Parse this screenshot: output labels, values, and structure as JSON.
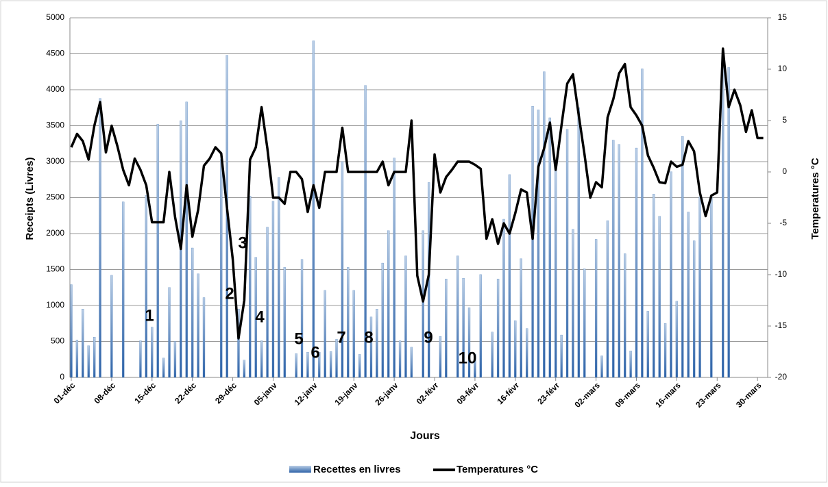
{
  "chart_data": {
    "type": "bar",
    "xlabel": "Jours",
    "ylabel": "Receipts (Livres)",
    "y2label": "Temperatures °C",
    "categories": [
      "01-déc",
      null,
      null,
      null,
      null,
      null,
      null,
      "08-déc",
      null,
      null,
      null,
      null,
      null,
      null,
      "15-déc",
      null,
      null,
      null,
      null,
      null,
      null,
      "22-déc",
      null,
      null,
      null,
      null,
      null,
      null,
      "29-déc",
      null,
      null,
      null,
      null,
      null,
      null,
      "05-janv",
      null,
      null,
      null,
      null,
      null,
      null,
      "12-janv",
      null,
      null,
      null,
      null,
      null,
      null,
      "19-janv",
      null,
      null,
      null,
      null,
      null,
      null,
      "26-janv",
      null,
      null,
      null,
      null,
      null,
      null,
      "02-févr",
      null,
      null,
      null,
      null,
      null,
      null,
      "09-févr",
      null,
      null,
      null,
      null,
      null,
      null,
      "16-févr",
      null,
      null,
      null,
      null,
      null,
      null,
      "23-févr",
      null,
      null,
      null,
      null,
      null,
      null,
      "02-mars",
      null,
      null,
      null,
      null,
      null,
      null,
      "09-mars",
      null,
      null,
      null,
      null,
      null,
      null,
      "16-mars",
      null,
      null,
      null,
      null,
      null,
      null,
      "23-mars",
      null,
      null,
      null,
      null,
      null,
      null,
      "30-mars",
      null
    ],
    "series": [
      {
        "name": "Recettes en livres",
        "type": "bar",
        "color": "#4f81bd",
        "values": [
          1290,
          520,
          950,
          440,
          560,
          3880,
          0,
          1420,
          0,
          2440,
          0,
          0,
          510,
          2530,
          700,
          3520,
          270,
          1250,
          500,
          3570,
          3830,
          1800,
          1440,
          1110,
          0,
          0,
          3030,
          4480,
          0,
          950,
          240,
          2520,
          1670,
          510,
          2090,
          2450,
          2780,
          1530,
          0,
          330,
          1640,
          350,
          4680,
          350,
          1210,
          360,
          530,
          3000,
          1530,
          1210,
          320,
          4060,
          840,
          950,
          1590,
          2040,
          3050,
          510,
          1690,
          420,
          0,
          2040,
          2710,
          0,
          570,
          1370,
          0,
          1690,
          1380,
          970,
          320,
          1430,
          0,
          630,
          1370,
          2200,
          2820,
          790,
          1650,
          680,
          3770,
          3720,
          4250,
          3610,
          2870,
          590,
          3450,
          2060,
          3750,
          1510,
          0,
          1920,
          300,
          2180,
          3300,
          3240,
          1720,
          370,
          3190,
          4290,
          920,
          2550,
          2240,
          750,
          2860,
          1060,
          3350,
          2300,
          1900,
          2510,
          0,
          2500,
          0,
          4310,
          4310,
          0,
          0,
          0,
          0,
          0,
          0
        ]
      },
      {
        "name": "Temperatures °C",
        "type": "line",
        "axis": "y2",
        "color": "#000000",
        "values": [
          2.4,
          3.7,
          3.0,
          1.2,
          4.5,
          6.8,
          1.9,
          4.5,
          2.5,
          0.2,
          -1.3,
          1.3,
          0.2,
          -1.3,
          -4.9,
          -4.9,
          -4.9,
          0,
          -4.4,
          -7.5,
          -1.3,
          -6.3,
          -3.7,
          0.6,
          1.3,
          2.4,
          1.8,
          -3.5,
          -8.5,
          -16.2,
          -12.5,
          1.2,
          2.4,
          6.3,
          2.3,
          -2.5,
          -2.5,
          -3.1,
          0,
          0,
          -0.7,
          -3.9,
          -1.3,
          -3.5,
          0,
          0,
          0,
          4.3,
          0,
          0,
          0,
          0,
          0,
          0,
          1,
          -1.3,
          0,
          0,
          0,
          5,
          -10.1,
          -12.6,
          -10,
          1.7,
          -2,
          -0.5,
          0.2,
          1,
          1,
          1,
          0.7,
          0.3,
          -6.5,
          -4.6,
          -7,
          -5,
          -6,
          -4,
          -1.7,
          -2,
          -6.5,
          0.5,
          2.3,
          4.8,
          0.2,
          4.5,
          8.6,
          9.5,
          5.5,
          1.7,
          -2.5,
          -1,
          -1.5,
          5.3,
          7.1,
          9.6,
          10.5,
          6.3,
          5.5,
          4.5,
          1.6,
          0.4,
          -1,
          -1.1,
          1,
          0.5,
          0.7,
          3,
          2,
          -2,
          -4.3,
          -2.3,
          -2,
          12,
          6.3,
          8,
          6.5,
          3.9,
          6,
          3.3,
          3.3
        ]
      }
    ],
    "ylim": [
      0,
      5000
    ],
    "yticks": [
      0,
      500,
      1000,
      1500,
      2000,
      2500,
      3000,
      3500,
      4000,
      4500,
      5000
    ],
    "y2lim": [
      -20,
      15
    ],
    "y2ticks": [
      -20,
      -15,
      -10,
      -5,
      0,
      5,
      10,
      15
    ],
    "grid": true,
    "legend": "bottom",
    "annotations": [
      "1",
      "2",
      "3",
      "4",
      "5",
      "6",
      "7",
      "8",
      "9",
      "10"
    ]
  }
}
